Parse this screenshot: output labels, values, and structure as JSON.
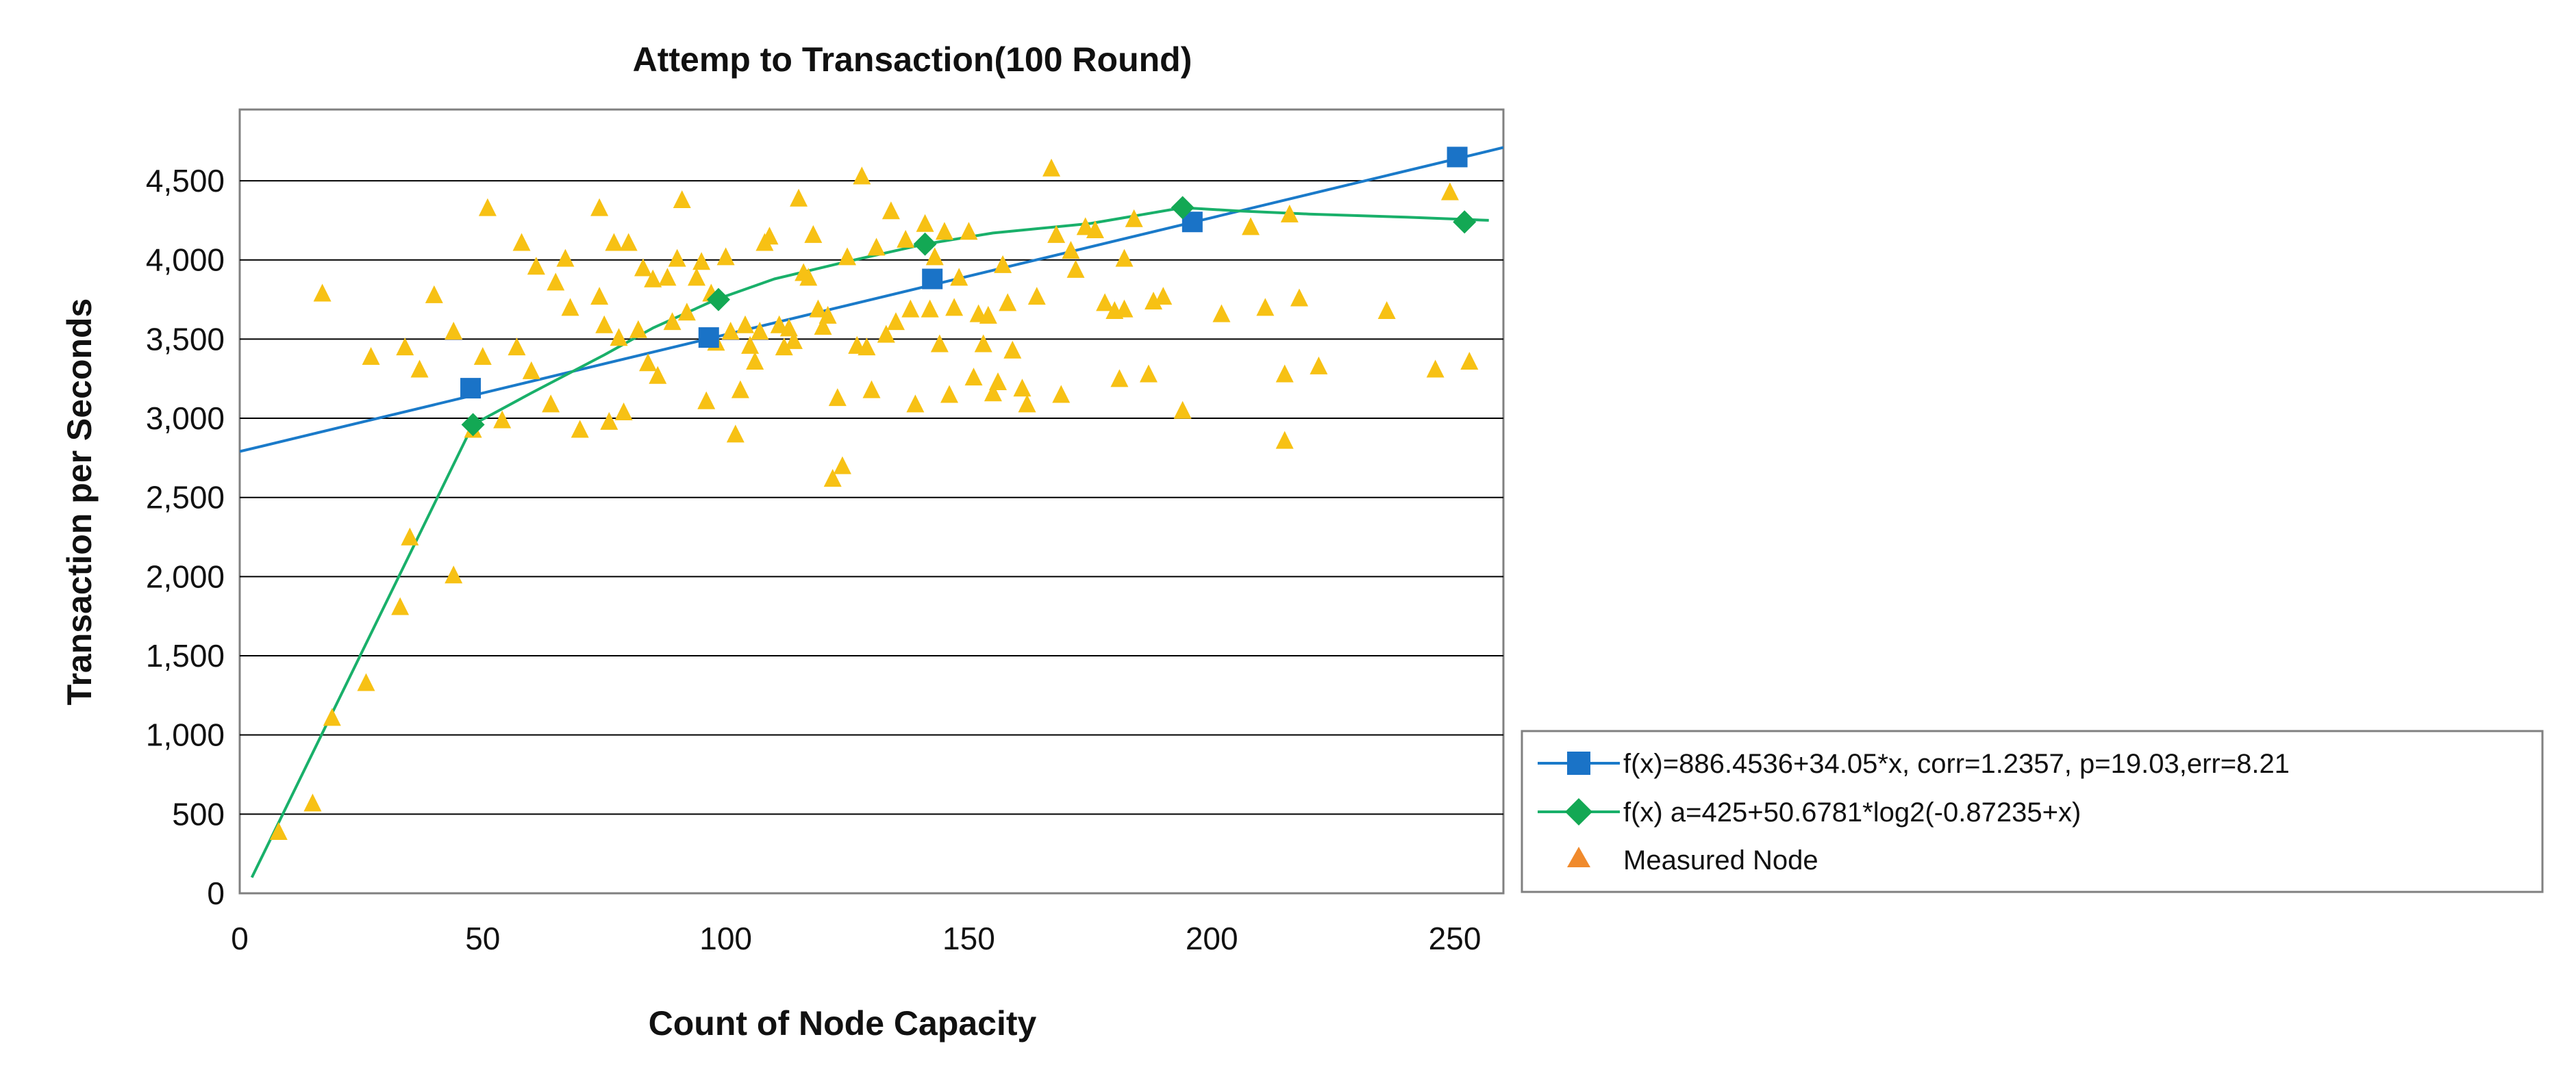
{
  "chart_data": {
    "type": "scatter",
    "title": "Attemp to Transaction(100 Round)",
    "xlabel": "Count of Node Capacity",
    "ylabel": "Transaction per Seconds",
    "xlim": [
      0,
      260
    ],
    "ylim": [
      0,
      4950
    ],
    "x_ticks": [
      0,
      50,
      100,
      150,
      200,
      250
    ],
    "x_tick_labels": [
      "0",
      "50",
      "100",
      "150",
      "200",
      "250"
    ],
    "y_ticks": [
      0,
      500,
      1000,
      1500,
      2000,
      2500,
      3000,
      3500,
      4000,
      4500
    ],
    "y_tick_labels": [
      "0",
      "500",
      "1,000",
      "1,500",
      "2,000",
      "2,500",
      "3,000",
      "3,500",
      "4,000",
      "4,500"
    ],
    "grid": true,
    "legend_position": "bottom-right",
    "colors": {
      "linear": "#1a7ac9",
      "linear_marker": "#1a73c7",
      "log": "#19b06a",
      "log_marker": "#13a854",
      "measured": "#f7c114",
      "legend_triangle": "#f08a2c",
      "grid": "#000000",
      "frame": "#808080"
    },
    "series": [
      {
        "name": "f(x)=886.4536+34.05*x, corr=1.2357, p=19.03,err=8.21",
        "kind": "line",
        "line": [
          [
            0,
            2790
          ],
          [
            260,
            4710
          ]
        ],
        "markers": [
          [
            47.5,
            3190
          ],
          [
            96.5,
            3510
          ],
          [
            142.5,
            3880
          ],
          [
            196,
            4240
          ],
          [
            250.5,
            4650
          ]
        ]
      },
      {
        "name": "f(x) a=425+50.6781*log2(-0.87235+x)",
        "kind": "line",
        "line": [
          [
            2.5,
            100
          ],
          [
            48,
            2960
          ],
          [
            60,
            3160
          ],
          [
            75,
            3400
          ],
          [
            85,
            3570
          ],
          [
            98,
            3750
          ],
          [
            110,
            3880
          ],
          [
            125,
            3990
          ],
          [
            141,
            4100
          ],
          [
            155,
            4170
          ],
          [
            175,
            4230
          ],
          [
            194,
            4330
          ],
          [
            205,
            4310
          ],
          [
            220,
            4290
          ],
          [
            240,
            4270
          ],
          [
            257,
            4250
          ]
        ],
        "markers": [
          [
            48,
            2960
          ],
          [
            98.5,
            3750
          ],
          [
            141,
            4100
          ],
          [
            194,
            4330
          ],
          [
            252,
            4240
          ]
        ]
      },
      {
        "name": "Measured Node",
        "kind": "scatter",
        "points": [
          [
            8,
            380
          ],
          [
            15,
            560
          ],
          [
            17,
            3780
          ],
          [
            19,
            1100
          ],
          [
            26,
            1320
          ],
          [
            27,
            3380
          ],
          [
            33,
            1800
          ],
          [
            34,
            3440
          ],
          [
            35,
            2240
          ],
          [
            37,
            3300
          ],
          [
            40,
            3770
          ],
          [
            44,
            2000
          ],
          [
            44,
            3540
          ],
          [
            48,
            2920
          ],
          [
            50,
            3380
          ],
          [
            51,
            4320
          ],
          [
            54,
            2980
          ],
          [
            57,
            3440
          ],
          [
            58,
            4100
          ],
          [
            60,
            3290
          ],
          [
            61,
            3950
          ],
          [
            64,
            3080
          ],
          [
            65,
            3850
          ],
          [
            67,
            4000
          ],
          [
            68,
            3690
          ],
          [
            70,
            2920
          ],
          [
            74,
            4320
          ],
          [
            74,
            3760
          ],
          [
            75,
            3580
          ],
          [
            76,
            2970
          ],
          [
            77,
            4100
          ],
          [
            78,
            3500
          ],
          [
            79,
            3030
          ],
          [
            80,
            4100
          ],
          [
            82,
            3550
          ],
          [
            83,
            3940
          ],
          [
            84,
            3340
          ],
          [
            85,
            3870
          ],
          [
            86,
            3260
          ],
          [
            88,
            3880
          ],
          [
            89,
            3600
          ],
          [
            90,
            4000
          ],
          [
            91,
            4370
          ],
          [
            92,
            3660
          ],
          [
            94,
            3880
          ],
          [
            95,
            3980
          ],
          [
            96,
            3100
          ],
          [
            97,
            3780
          ],
          [
            98,
            3470
          ],
          [
            100,
            4010
          ],
          [
            101,
            3540
          ],
          [
            102,
            2890
          ],
          [
            103,
            3170
          ],
          [
            104,
            3580
          ],
          [
            105,
            3450
          ],
          [
            106,
            3350
          ],
          [
            107,
            3540
          ],
          [
            108,
            4100
          ],
          [
            109,
            4140
          ],
          [
            111,
            3580
          ],
          [
            112,
            3440
          ],
          [
            113,
            3560
          ],
          [
            114,
            3480
          ],
          [
            115,
            4380
          ],
          [
            116,
            3910
          ],
          [
            117,
            3880
          ],
          [
            118,
            4150
          ],
          [
            119,
            3680
          ],
          [
            120,
            3570
          ],
          [
            121,
            3640
          ],
          [
            122,
            2610
          ],
          [
            123,
            3120
          ],
          [
            124,
            2690
          ],
          [
            125,
            4010
          ],
          [
            127,
            3450
          ],
          [
            128,
            4520
          ],
          [
            129,
            3440
          ],
          [
            130,
            3170
          ],
          [
            131,
            4070
          ],
          [
            133,
            3520
          ],
          [
            134,
            4300
          ],
          [
            135,
            3600
          ],
          [
            137,
            4120
          ],
          [
            138,
            3680
          ],
          [
            139,
            3080
          ],
          [
            141,
            4220
          ],
          [
            142,
            3680
          ],
          [
            143,
            4010
          ],
          [
            144,
            3460
          ],
          [
            145,
            4170
          ],
          [
            146,
            3140
          ],
          [
            147,
            3690
          ],
          [
            148,
            3880
          ],
          [
            150,
            4170
          ],
          [
            151,
            3250
          ],
          [
            152,
            3650
          ],
          [
            153,
            3460
          ],
          [
            154,
            3640
          ],
          [
            155,
            3150
          ],
          [
            156,
            3220
          ],
          [
            157,
            3960
          ],
          [
            158,
            3720
          ],
          [
            159,
            3420
          ],
          [
            161,
            3180
          ],
          [
            162,
            3080
          ],
          [
            164,
            3760
          ],
          [
            167,
            4570
          ],
          [
            168,
            4150
          ],
          [
            169,
            3140
          ],
          [
            171,
            4050
          ],
          [
            172,
            3930
          ],
          [
            174,
            4200
          ],
          [
            176,
            4180
          ],
          [
            178,
            3720
          ],
          [
            180,
            3670
          ],
          [
            181,
            3240
          ],
          [
            182,
            3680
          ],
          [
            182,
            4000
          ],
          [
            184,
            4250
          ],
          [
            187,
            3270
          ],
          [
            188,
            3730
          ],
          [
            190,
            3760
          ],
          [
            194,
            3040
          ],
          [
            202,
            3650
          ],
          [
            208,
            4200
          ],
          [
            211,
            3690
          ],
          [
            215,
            3270
          ],
          [
            215,
            2850
          ],
          [
            216,
            4280
          ],
          [
            218,
            3750
          ],
          [
            222,
            3320
          ],
          [
            236,
            3670
          ],
          [
            246,
            3300
          ],
          [
            249,
            4420
          ],
          [
            253,
            3350
          ]
        ]
      }
    ]
  }
}
